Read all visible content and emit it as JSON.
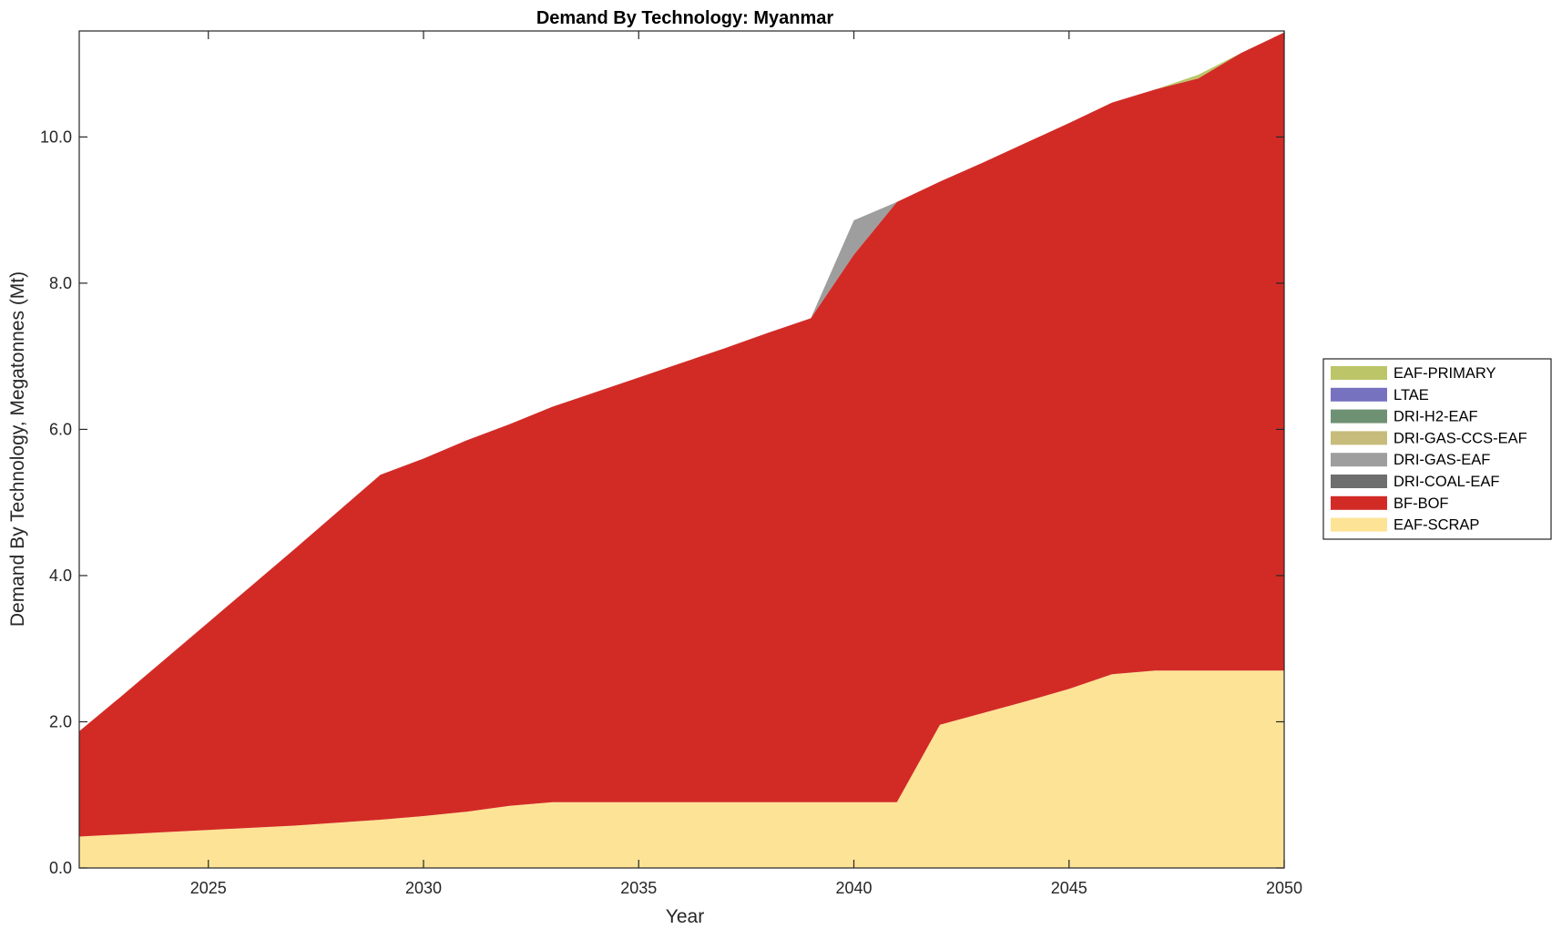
{
  "chart_data": {
    "type": "area",
    "stacked": true,
    "title": "Demand By Technology: Myanmar",
    "xlabel": "Year",
    "ylabel": "Demand By Technology, Megatonnes (Mt)",
    "xlim": [
      2022,
      2050
    ],
    "ylim": [
      0,
      11.45
    ],
    "xticks": [
      2025,
      2030,
      2035,
      2040,
      2045,
      2050
    ],
    "yticks": [
      0,
      2,
      4,
      6,
      8,
      10
    ],
    "ytick_labels": [
      "0.0",
      "2.0",
      "4.0",
      "6.0",
      "8.0",
      "10.0"
    ],
    "grid": false,
    "legend_position": "right",
    "x": [
      2022,
      2023,
      2024,
      2025,
      2026,
      2027,
      2028,
      2029,
      2030,
      2031,
      2032,
      2033,
      2034,
      2035,
      2036,
      2037,
      2038,
      2039,
      2040,
      2041,
      2042,
      2043,
      2044,
      2045,
      2046,
      2047,
      2048,
      2049,
      2050
    ],
    "series": [
      {
        "name": "EAF-SCRAP",
        "color": "#FDE396",
        "values": [
          0.43,
          0.46,
          0.49,
          0.52,
          0.55,
          0.58,
          0.62,
          0.66,
          0.71,
          0.77,
          0.85,
          0.9,
          0.9,
          0.9,
          0.9,
          0.9,
          0.9,
          0.9,
          0.9,
          0.9,
          1.96,
          2.12,
          2.28,
          2.45,
          2.65,
          2.7,
          2.7,
          2.7,
          2.7
        ]
      },
      {
        "name": "BF-BOF",
        "color": "#D22B26",
        "values": [
          1.44,
          1.9,
          2.37,
          2.84,
          3.31,
          3.78,
          4.25,
          4.72,
          4.89,
          5.08,
          5.22,
          5.41,
          5.61,
          5.81,
          6.01,
          6.21,
          6.42,
          6.62,
          7.49,
          8.21,
          7.43,
          7.53,
          7.64,
          7.74,
          7.82,
          7.95,
          8.1,
          8.45,
          8.73
        ]
      },
      {
        "name": "DRI-COAL-EAF",
        "color": "#6E6E6E",
        "values": [
          0,
          0,
          0,
          0,
          0,
          0,
          0,
          0,
          0,
          0,
          0,
          0,
          0,
          0,
          0,
          0,
          0,
          0,
          0,
          0,
          0,
          0,
          0,
          0,
          0,
          0,
          0,
          0,
          0
        ]
      },
      {
        "name": "DRI-GAS-EAF",
        "color": "#9E9E9E",
        "values": [
          0,
          0,
          0,
          0,
          0,
          0,
          0,
          0,
          0,
          0,
          0,
          0,
          0,
          0,
          0,
          0,
          0,
          0,
          0.47,
          0,
          0,
          0,
          0,
          0,
          0,
          0,
          0,
          0,
          0
        ]
      },
      {
        "name": "DRI-GAS-CCS-EAF",
        "color": "#C8BC7C",
        "values": [
          0,
          0,
          0,
          0,
          0,
          0,
          0,
          0,
          0,
          0,
          0,
          0,
          0,
          0,
          0,
          0,
          0,
          0,
          0,
          0,
          0,
          0,
          0,
          0,
          0,
          0,
          0,
          0,
          0
        ]
      },
      {
        "name": "DRI-H2-EAF",
        "color": "#6E9173",
        "values": [
          0,
          0,
          0,
          0,
          0,
          0,
          0,
          0,
          0,
          0,
          0,
          0,
          0,
          0,
          0,
          0,
          0,
          0,
          0,
          0,
          0,
          0,
          0,
          0,
          0,
          0,
          0,
          0,
          0
        ]
      },
      {
        "name": "LTAE",
        "color": "#7772C0",
        "values": [
          0,
          0,
          0,
          0,
          0,
          0,
          0,
          0,
          0,
          0,
          0,
          0,
          0,
          0,
          0,
          0,
          0,
          0,
          0,
          0,
          0,
          0,
          0,
          0,
          0,
          0,
          0,
          0,
          0
        ]
      },
      {
        "name": "EAF-PRIMARY",
        "color": "#BCC568",
        "values": [
          0,
          0,
          0,
          0,
          0,
          0,
          0,
          0,
          0,
          0,
          0,
          0,
          0,
          0,
          0,
          0,
          0,
          0,
          0,
          0,
          0,
          0,
          0,
          0,
          0,
          0,
          0.05,
          0,
          0
        ]
      }
    ],
    "legend_order": [
      "EAF-PRIMARY",
      "LTAE",
      "DRI-H2-EAF",
      "DRI-GAS-CCS-EAF",
      "DRI-GAS-EAF",
      "DRI-COAL-EAF",
      "BF-BOF",
      "EAF-SCRAP"
    ]
  }
}
